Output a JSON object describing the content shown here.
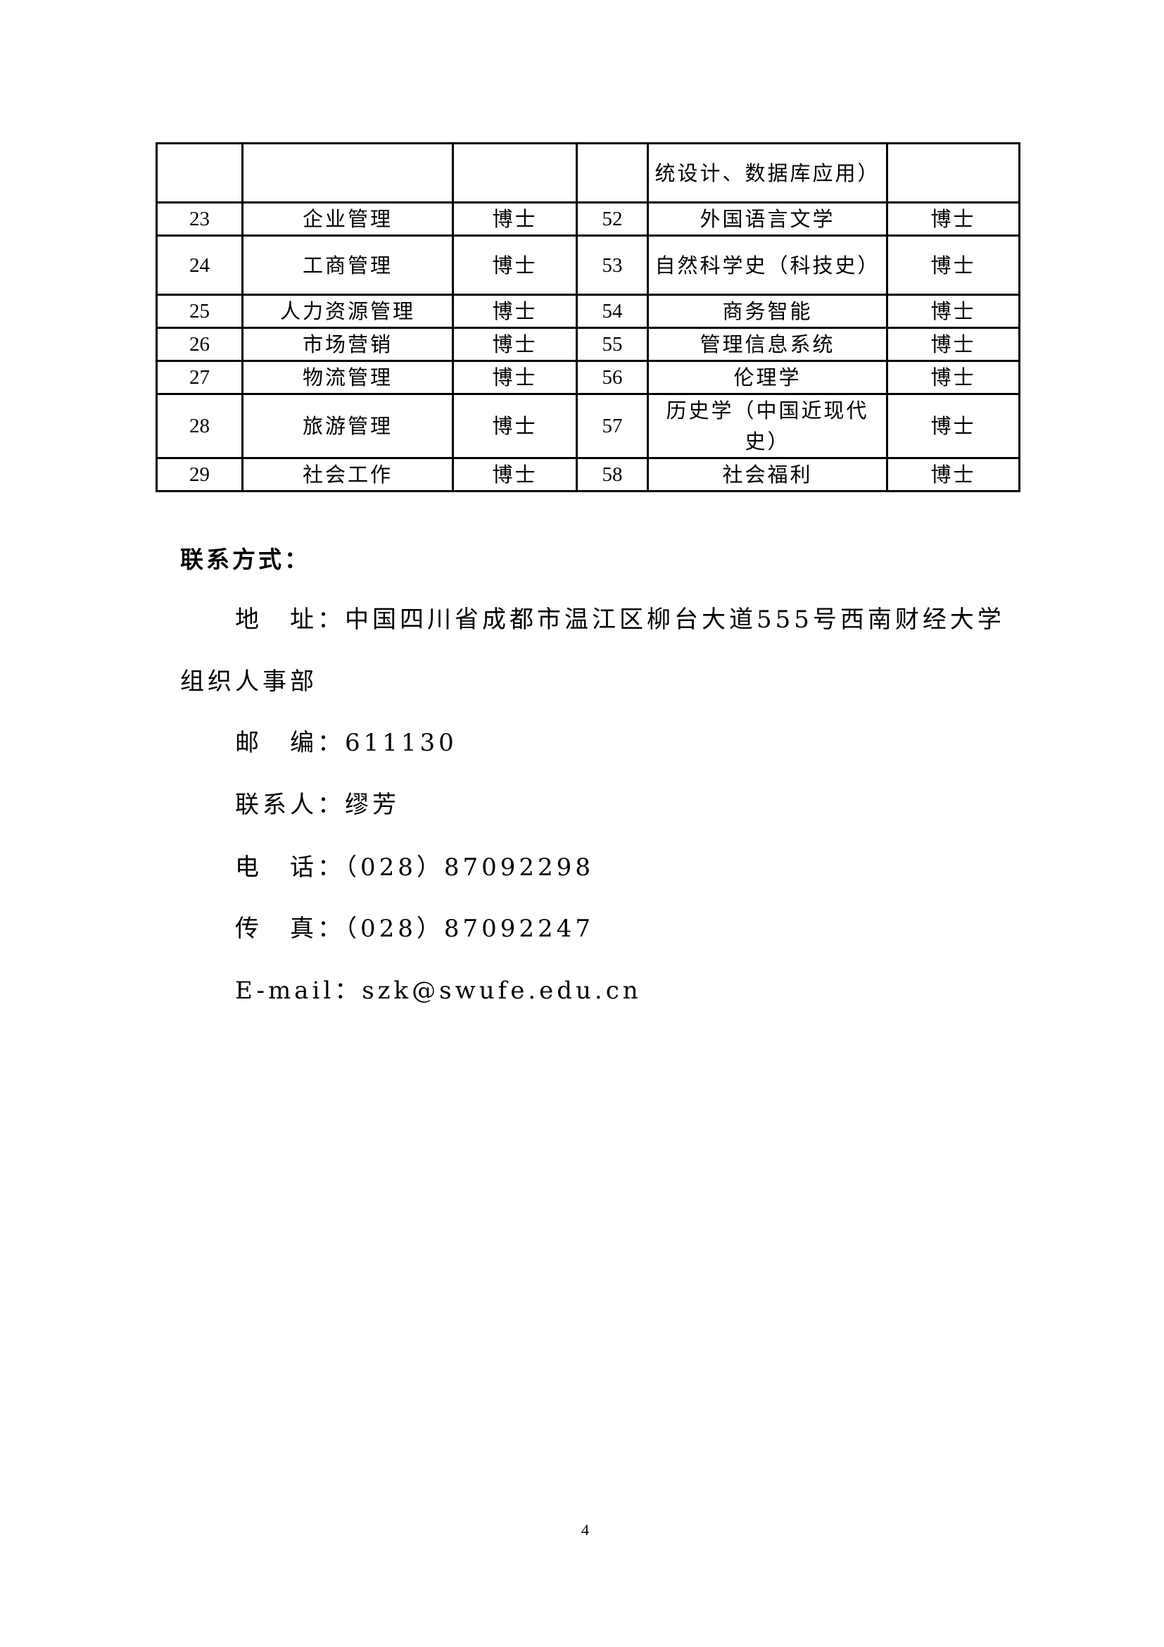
{
  "table": {
    "rows": [
      [
        "",
        "",
        "",
        "",
        "统设计、数据库应用）",
        ""
      ],
      [
        "23",
        "企业管理",
        "博士",
        "52",
        "外国语言文学",
        "博士"
      ],
      [
        "24",
        "工商管理",
        "博士",
        "53",
        "自然科学史（科技史）",
        "博士"
      ],
      [
        "25",
        "人力资源管理",
        "博士",
        "54",
        "商务智能",
        "博士"
      ],
      [
        "26",
        "市场营销",
        "博士",
        "55",
        "管理信息系统",
        "博士"
      ],
      [
        "27",
        "物流管理",
        "博士",
        "56",
        "伦理学",
        "博士"
      ],
      [
        "28",
        "旅游管理",
        "博士",
        "57",
        "历史学（中国近现代史）",
        "博士"
      ],
      [
        "29",
        "社会工作",
        "博士",
        "58",
        "社会福利",
        "博士"
      ]
    ]
  },
  "contact": {
    "heading": "联系方式：",
    "address_line1": "地　址：中国四川省成都市温江区柳台大道555号西南财经大学",
    "address_line2": "组织人事部",
    "postcode": "邮　编：611130",
    "contact_person": "联系人：缪芳",
    "phone": "电　话：（028）87092298",
    "fax": "传　真：（028）87092247",
    "email": "E-mail：szk@swufe.edu.cn"
  },
  "page_number": "4"
}
